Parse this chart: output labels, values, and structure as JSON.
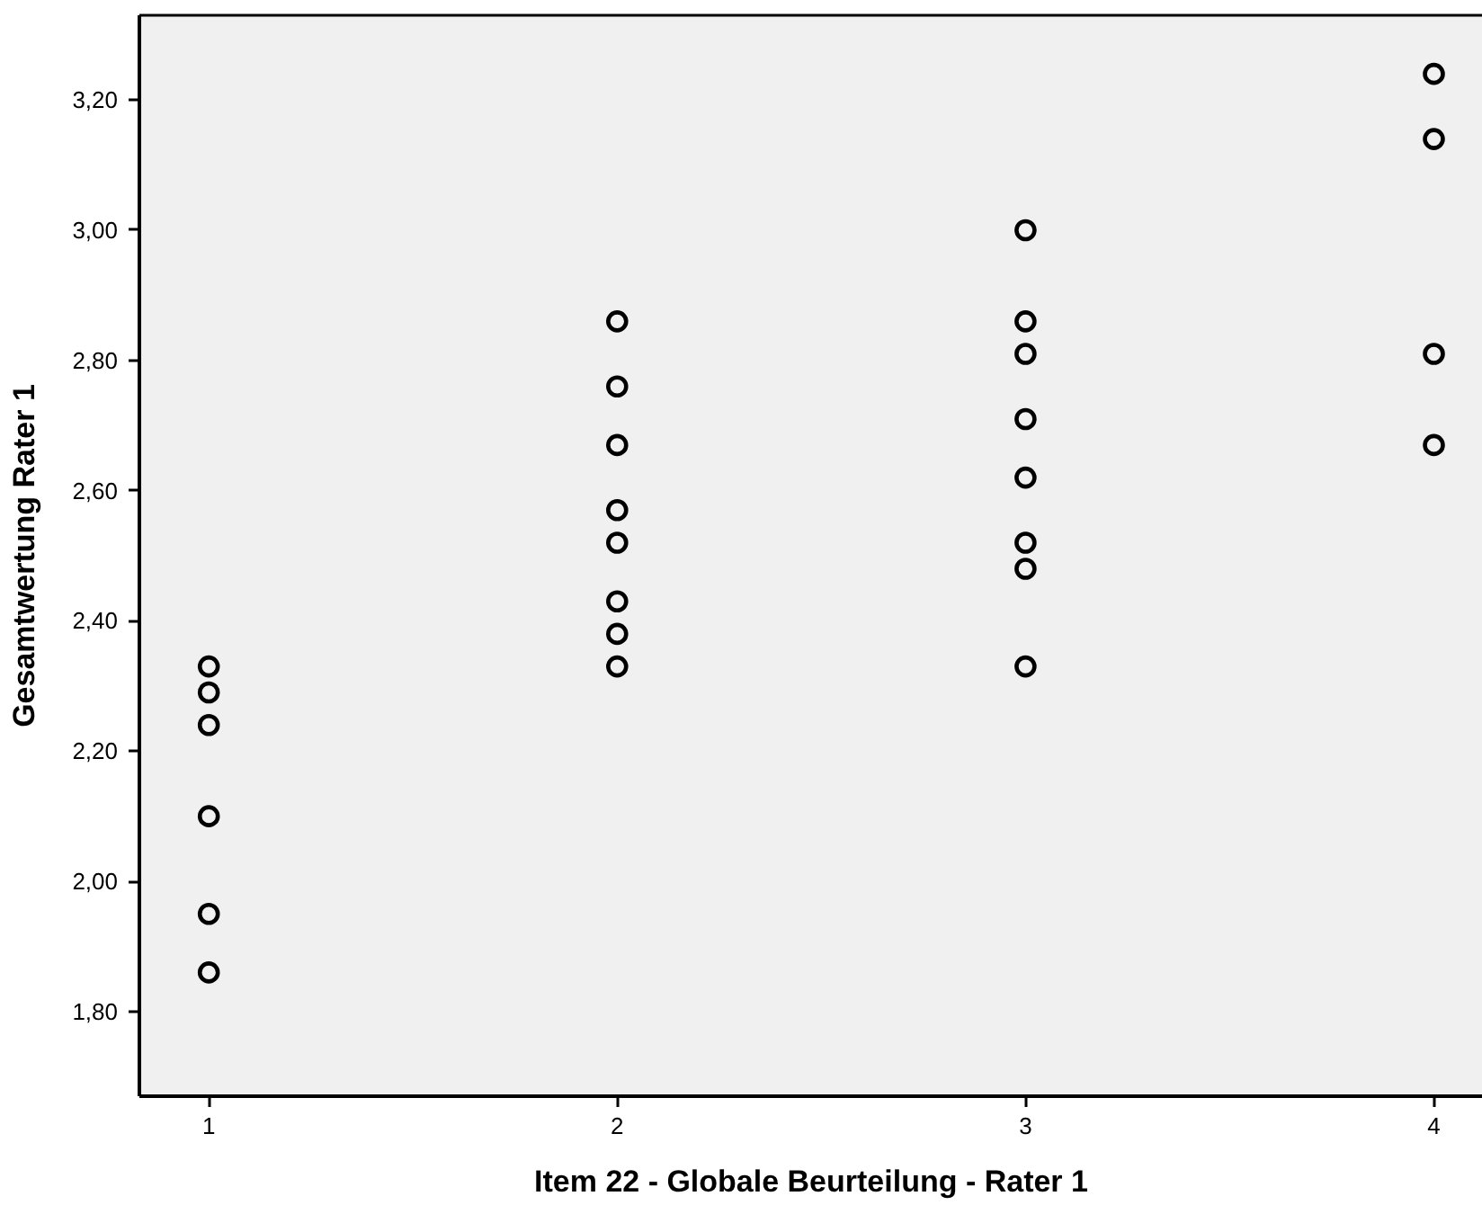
{
  "chart_data": {
    "type": "scatter",
    "xlabel": "Item 22 - Globale Beurteilung - Rater 1",
    "ylabel": "Gesamtwertung Rater 1",
    "x": [
      1,
      1,
      1,
      1,
      1,
      1,
      2,
      2,
      2,
      2,
      2,
      2,
      2,
      2,
      3,
      3,
      3,
      3,
      3,
      3,
      3,
      3,
      4,
      4,
      4,
      4
    ],
    "values": [
      2.33,
      2.29,
      2.24,
      2.1,
      1.95,
      1.86,
      2.86,
      2.76,
      2.67,
      2.57,
      2.52,
      2.43,
      2.38,
      2.33,
      3.0,
      2.86,
      2.81,
      2.71,
      2.62,
      2.52,
      2.48,
      2.33,
      3.24,
      3.14,
      2.81,
      2.67
    ],
    "color": "#000000",
    "marker": "circle",
    "grid": false,
    "xlim": [
      0.83,
      4.12
    ],
    "ylim": [
      1.67,
      3.33
    ],
    "xticks": [
      1,
      2,
      3,
      4
    ],
    "yticks": [
      {
        "value": 1.8,
        "label": "1,80"
      },
      {
        "value": 2.0,
        "label": "2,00"
      },
      {
        "value": 2.2,
        "label": "2,20"
      },
      {
        "value": 2.4,
        "label": "2,40"
      },
      {
        "value": 2.6,
        "label": "2,60"
      },
      {
        "value": 2.8,
        "label": "2,80"
      },
      {
        "value": 3.0,
        "label": "3,00"
      },
      {
        "value": 3.2,
        "label": "3,20"
      }
    ]
  }
}
